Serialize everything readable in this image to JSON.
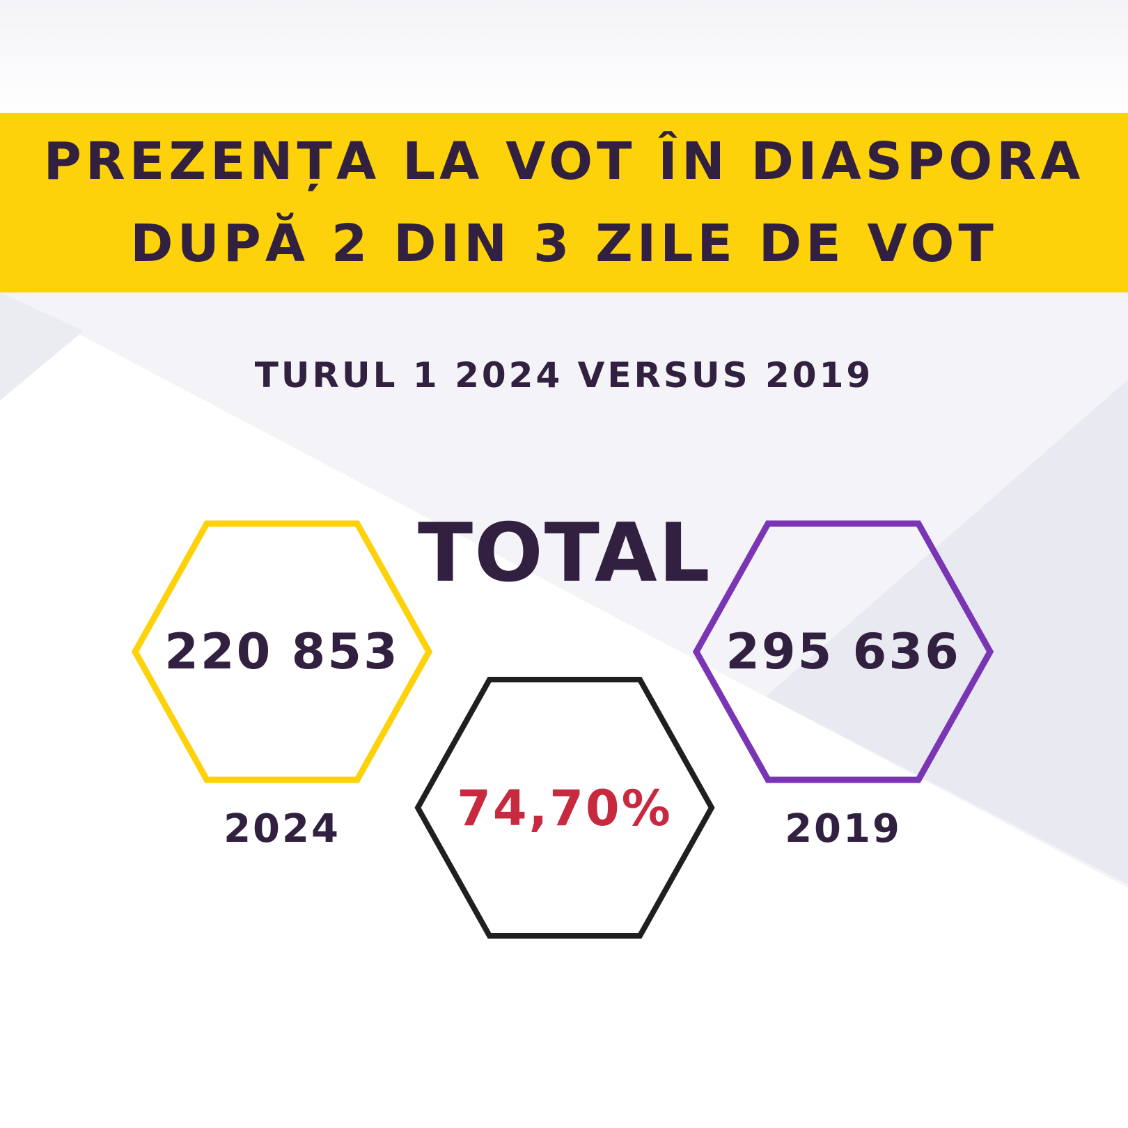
{
  "colors": {
    "background": "#ffffff",
    "banner": "#fdd20b",
    "text_dark": "#31203f",
    "hex_2024": "#fdd20b",
    "hex_2019": "#7a35b4",
    "hex_ratio": "#1f1f22",
    "ratio_text": "#c7293f",
    "bg_shape": "#ececf4"
  },
  "header": {
    "title_line1": "PREZENȚA LA VOT ÎN DIASPORA",
    "title_line2": "DUPĂ 2 DIN 3 ZILE DE VOT"
  },
  "subtitle": "TURUL 1 2024 VERSUS 2019",
  "total_label": "TOTAL",
  "stats": {
    "left": {
      "value": "220 853",
      "year": "2024"
    },
    "right": {
      "value": "295 636",
      "year": "2019"
    },
    "center": {
      "value": "74,70%"
    }
  }
}
